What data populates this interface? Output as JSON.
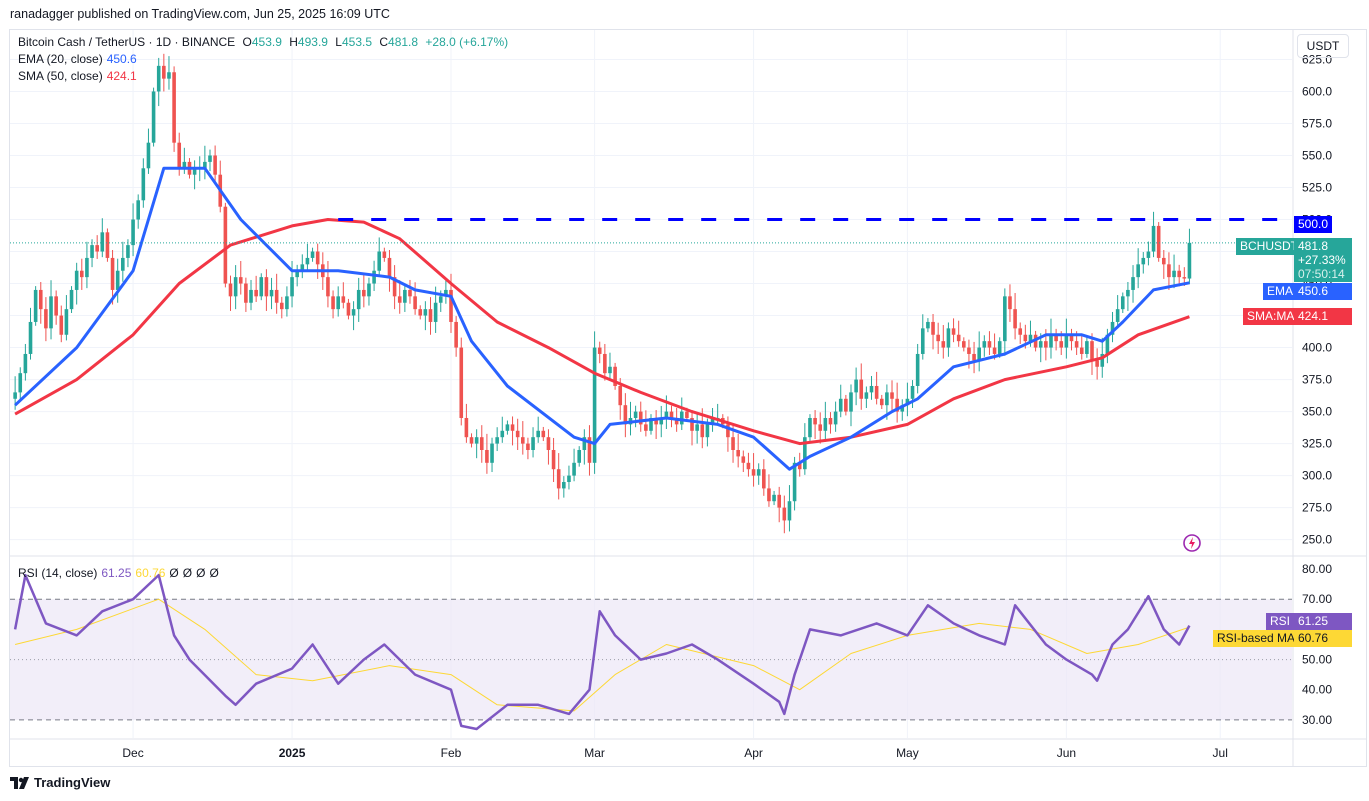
{
  "header": {
    "published": "ranadagger published on TradingView.com, Jun 25, 2025 16:09 UTC"
  },
  "legend": {
    "symbol": "Bitcoin Cash / TetherUS · 1D · BINANCE",
    "o_label": "O",
    "o": "453.9",
    "h_label": "H",
    "h": "493.9",
    "l_label": "L",
    "l": "453.5",
    "c_label": "C",
    "c": "481.8",
    "change": "+28.0 (+6.17%)",
    "ema_label": "EMA (20, close)",
    "ema_value": "450.6",
    "sma_label": "SMA (50, close)",
    "sma_value": "424.1",
    "rsi_label": "RSI (14, close)",
    "rsi_value": "61.25",
    "rsi_ma_value": "60.76",
    "na_marks": [
      "Ø",
      "Ø",
      "Ø",
      "Ø"
    ]
  },
  "axis": {
    "currency": "USDT",
    "time_labels": [
      {
        "label": "Dec",
        "date": "2024-12-01"
      },
      {
        "label": "2025",
        "date": "2025-01-01",
        "bold": true
      },
      {
        "label": "Feb",
        "date": "2025-02-01"
      },
      {
        "label": "Mar",
        "date": "2025-03-01"
      },
      {
        "label": "Apr",
        "date": "2025-04-01"
      },
      {
        "label": "May",
        "date": "2025-05-01"
      },
      {
        "label": "Jun",
        "date": "2025-06-01"
      },
      {
        "label": "Jul",
        "date": "2025-07-01"
      }
    ]
  },
  "price_tags": {
    "resistance": "500.0",
    "symbol": "BCHUSDT",
    "last": "481.8",
    "change_pct": "+27.33%",
    "countdown": "07:50:14",
    "ema": "EMA",
    "ema_value": "450.6",
    "sma": "SMA:MA",
    "sma_value": "424.1",
    "rsi": "RSI",
    "rsi_value": "61.25",
    "rsi_ma": "RSI-based MA",
    "rsi_ma_value": "60.76"
  },
  "colors": {
    "up": "#26a69a",
    "down": "#ef5350",
    "ema": "#2962ff",
    "sma": "#f23645",
    "resistance": "#0000ff",
    "rsi": "#7e57c2",
    "rsi_ma": "#fdd835",
    "rsi_band": "#ede7f6"
  },
  "icons": {
    "replay": "lightning-circle-icon",
    "logo": "tradingview-logo-icon"
  },
  "footer": {
    "brand": "TradingView"
  },
  "chart_data": {
    "type": "candlestick",
    "price_axis": {
      "ticks": [
        250,
        275,
        300,
        325,
        350,
        375,
        400,
        425,
        450,
        475,
        500,
        525,
        550,
        575,
        600,
        625
      ],
      "range": [
        238,
        648
      ]
    },
    "rsi_axis": {
      "ticks": [
        30,
        40,
        50,
        60,
        70,
        80
      ],
      "range": [
        24,
        84
      ],
      "bands": [
        30,
        70
      ],
      "mid": 50
    },
    "time_range": [
      "2024-11-07",
      "2025-07-15"
    ],
    "resistance": {
      "value": 500.0,
      "from": "2025-01-10"
    },
    "closes": [
      {
        "month": "2024-11",
        "first_day": 8,
        "values": [
          365,
          380,
          395,
          420,
          445,
          430,
          415,
          440,
          425,
          410,
          430,
          445,
          460,
          455,
          470,
          480,
          475,
          490,
          470,
          445,
          460,
          470,
          480
        ]
      },
      {
        "month": "2024-12",
        "first_day": 1,
        "values": [
          500,
          515,
          540,
          560,
          600,
          620,
          610,
          615,
          560,
          540,
          545,
          535,
          540,
          540,
          545,
          550,
          535,
          510,
          450,
          440,
          455,
          450,
          435,
          445,
          440,
          455,
          440,
          445,
          435,
          430,
          440
        ]
      },
      {
        "month": "2025-01",
        "first_day": 1,
        "values": [
          455,
          460,
          465,
          470,
          475,
          465,
          455,
          440,
          430,
          440,
          435,
          425,
          430,
          445,
          440,
          450,
          460,
          475,
          470,
          455,
          440,
          435,
          445,
          440,
          430,
          425,
          430,
          420,
          435,
          440,
          445
        ]
      },
      {
        "month": "2025-02",
        "first_day": 1,
        "values": [
          420,
          400,
          345,
          330,
          325,
          330,
          320,
          310,
          325,
          330,
          335,
          340,
          335,
          330,
          325,
          320,
          330,
          335,
          330,
          320,
          305,
          290,
          295,
          300,
          310,
          320,
          330,
          310
        ]
      },
      {
        "month": "2025-03",
        "first_day": 1,
        "values": [
          400,
          395,
          380,
          385,
          370,
          355,
          340,
          345,
          350,
          340,
          335,
          345,
          340,
          345,
          350,
          345,
          340,
          350,
          345,
          335,
          340,
          330,
          340,
          345,
          345,
          340,
          330,
          320,
          315,
          310,
          305
        ]
      },
      {
        "month": "2025-04",
        "first_day": 1,
        "values": [
          300,
          305,
          290,
          280,
          285,
          275,
          265,
          280,
          310,
          305,
          330,
          345,
          340,
          335,
          345,
          340,
          350,
          360,
          350,
          365,
          375,
          360,
          365,
          370,
          360,
          355,
          365,
          360,
          350,
          355
        ]
      },
      {
        "month": "2025-05",
        "first_day": 1,
        "values": [
          360,
          370,
          395,
          415,
          420,
          410,
          405,
          400,
          415,
          410,
          405,
          400,
          395,
          390,
          400,
          405,
          400,
          395,
          405,
          440,
          430,
          415,
          410,
          405,
          410,
          400,
          405,
          400,
          410,
          405,
          400
        ]
      },
      {
        "month": "2025-06",
        "first_day": 1,
        "values": [
          410,
          405,
          400,
          395,
          405,
          390,
          385,
          395,
          410,
          420,
          430,
          440,
          445,
          455,
          465,
          470,
          475,
          495,
          470,
          465,
          455,
          460,
          455,
          453.9,
          481.8
        ]
      }
    ],
    "ema20": [
      [
        "2024-11-08",
        355
      ],
      [
        "2024-11-20",
        400
      ],
      [
        "2024-12-01",
        460
      ],
      [
        "2024-12-07",
        540
      ],
      [
        "2024-12-15",
        540
      ],
      [
        "2024-12-22",
        500
      ],
      [
        "2025-01-01",
        460
      ],
      [
        "2025-01-10",
        460
      ],
      [
        "2025-01-20",
        455
      ],
      [
        "2025-01-25",
        445
      ],
      [
        "2025-02-01",
        440
      ],
      [
        "2025-02-05",
        405
      ],
      [
        "2025-02-12",
        370
      ],
      [
        "2025-02-25",
        330
      ],
      [
        "2025-03-01",
        325
      ],
      [
        "2025-03-04",
        340
      ],
      [
        "2025-03-15",
        345
      ],
      [
        "2025-03-25",
        340
      ],
      [
        "2025-04-01",
        330
      ],
      [
        "2025-04-08",
        305
      ],
      [
        "2025-04-12",
        315
      ],
      [
        "2025-04-20",
        330
      ],
      [
        "2025-04-28",
        350
      ],
      [
        "2025-05-03",
        360
      ],
      [
        "2025-05-10",
        385
      ],
      [
        "2025-05-20",
        395
      ],
      [
        "2025-05-28",
        410
      ],
      [
        "2025-06-04",
        410
      ],
      [
        "2025-06-08",
        405
      ],
      [
        "2025-06-12",
        420
      ],
      [
        "2025-06-18",
        445
      ],
      [
        "2025-06-25",
        450.6
      ]
    ],
    "sma50": [
      [
        "2024-11-08",
        348
      ],
      [
        "2024-11-20",
        375
      ],
      [
        "2024-12-01",
        410
      ],
      [
        "2024-12-10",
        450
      ],
      [
        "2024-12-20",
        480
      ],
      [
        "2025-01-01",
        495
      ],
      [
        "2025-01-08",
        500
      ],
      [
        "2025-01-15",
        498
      ],
      [
        "2025-01-22",
        485
      ],
      [
        "2025-02-01",
        450
      ],
      [
        "2025-02-10",
        420
      ],
      [
        "2025-02-20",
        400
      ],
      [
        "2025-03-01",
        380
      ],
      [
        "2025-03-10",
        365
      ],
      [
        "2025-03-20",
        350
      ],
      [
        "2025-04-01",
        335
      ],
      [
        "2025-04-10",
        325
      ],
      [
        "2025-04-20",
        330
      ],
      [
        "2025-05-01",
        340
      ],
      [
        "2025-05-10",
        360
      ],
      [
        "2025-05-20",
        375
      ],
      [
        "2025-06-01",
        385
      ],
      [
        "2025-06-08",
        392
      ],
      [
        "2025-06-15",
        410
      ],
      [
        "2025-06-25",
        424.1
      ]
    ],
    "rsi14": [
      [
        "2024-11-08",
        60
      ],
      [
        "2024-11-10",
        78
      ],
      [
        "2024-11-14",
        62
      ],
      [
        "2024-11-20",
        58
      ],
      [
        "2024-11-25",
        66
      ],
      [
        "2024-12-01",
        70
      ],
      [
        "2024-12-06",
        78
      ],
      [
        "2024-12-09",
        58
      ],
      [
        "2024-12-12",
        50
      ],
      [
        "2024-12-19",
        38
      ],
      [
        "2024-12-21",
        35
      ],
      [
        "2024-12-25",
        42
      ],
      [
        "2025-01-01",
        47
      ],
      [
        "2025-01-05",
        55
      ],
      [
        "2025-01-10",
        42
      ],
      [
        "2025-01-15",
        50
      ],
      [
        "2025-01-19",
        55
      ],
      [
        "2025-01-25",
        45
      ],
      [
        "2025-02-01",
        40
      ],
      [
        "2025-02-03",
        28
      ],
      [
        "2025-02-06",
        27
      ],
      [
        "2025-02-12",
        35
      ],
      [
        "2025-02-18",
        35
      ],
      [
        "2025-02-24",
        32
      ],
      [
        "2025-02-28",
        40
      ],
      [
        "2025-03-02",
        66
      ],
      [
        "2025-03-05",
        58
      ],
      [
        "2025-03-10",
        50
      ],
      [
        "2025-03-15",
        52
      ],
      [
        "2025-03-20",
        55
      ],
      [
        "2025-03-25",
        50
      ],
      [
        "2025-04-01",
        42
      ],
      [
        "2025-04-06",
        36
      ],
      [
        "2025-04-07",
        32
      ],
      [
        "2025-04-09",
        45
      ],
      [
        "2025-04-12",
        60
      ],
      [
        "2025-04-18",
        58
      ],
      [
        "2025-04-25",
        62
      ],
      [
        "2025-05-01",
        58
      ],
      [
        "2025-05-05",
        68
      ],
      [
        "2025-05-10",
        62
      ],
      [
        "2025-05-15",
        58
      ],
      [
        "2025-05-20",
        55
      ],
      [
        "2025-05-22",
        68
      ],
      [
        "2025-05-28",
        55
      ],
      [
        "2025-06-01",
        50
      ],
      [
        "2025-06-06",
        45
      ],
      [
        "2025-06-07",
        43
      ],
      [
        "2025-06-10",
        55
      ],
      [
        "2025-06-13",
        60
      ],
      [
        "2025-06-17",
        71
      ],
      [
        "2025-06-20",
        60
      ],
      [
        "2025-06-23",
        55
      ],
      [
        "2025-06-25",
        61.25
      ]
    ],
    "rsi_ma": [
      [
        "2024-11-08",
        55
      ],
      [
        "2024-11-20",
        60
      ],
      [
        "2024-12-06",
        70
      ],
      [
        "2024-12-15",
        60
      ],
      [
        "2024-12-25",
        45
      ],
      [
        "2025-01-05",
        43
      ],
      [
        "2025-01-20",
        48
      ],
      [
        "2025-02-01",
        45
      ],
      [
        "2025-02-10",
        35
      ],
      [
        "2025-02-25",
        33
      ],
      [
        "2025-03-05",
        45
      ],
      [
        "2025-03-15",
        55
      ],
      [
        "2025-04-01",
        48
      ],
      [
        "2025-04-10",
        40
      ],
      [
        "2025-04-20",
        52
      ],
      [
        "2025-05-01",
        58
      ],
      [
        "2025-05-15",
        62
      ],
      [
        "2025-05-25",
        60
      ],
      [
        "2025-06-05",
        52
      ],
      [
        "2025-06-15",
        55
      ],
      [
        "2025-06-25",
        60.76
      ]
    ]
  }
}
